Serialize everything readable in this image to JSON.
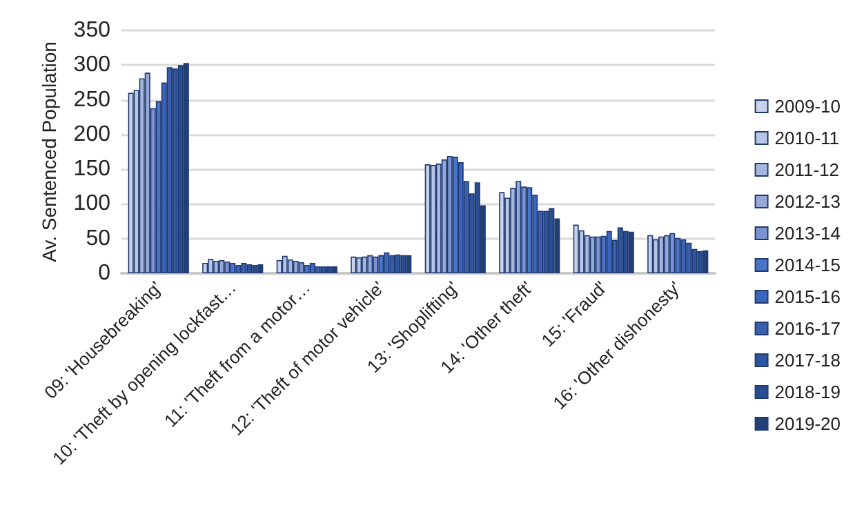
{
  "chart_data": {
    "type": "bar",
    "ylabel": "Av. Sentenced Population",
    "categories": [
      "09: 'Housebreaking'",
      "10: 'Theft by opening lockfast…",
      "11: 'Theft from a motor…",
      "12: 'Theft of motor vehicle'",
      "13: 'Shoplifting'",
      "14: 'Other theft'",
      "15: 'Fraud'",
      "16: 'Other dishonesty'"
    ],
    "series": [
      {
        "name": "2009-10",
        "color": "#c8d2ea",
        "values": [
          260,
          15,
          19,
          24,
          157,
          117,
          70,
          55
        ]
      },
      {
        "name": "2010-11",
        "color": "#b7c6e6",
        "values": [
          264,
          21,
          25,
          23,
          156,
          109,
          62,
          49
        ]
      },
      {
        "name": "2011-12",
        "color": "#a7b8df",
        "values": [
          281,
          18,
          20,
          24,
          158,
          123,
          55,
          53
        ]
      },
      {
        "name": "2012-13",
        "color": "#95a8d8",
        "values": [
          289,
          19,
          18,
          26,
          164,
          133,
          53,
          55
        ]
      },
      {
        "name": "2013-14",
        "color": "#7b93d0",
        "values": [
          238,
          17,
          16,
          24,
          169,
          125,
          53,
          58
        ]
      },
      {
        "name": "2014-15",
        "color": "#4a74c8",
        "values": [
          248,
          15,
          12,
          26,
          168,
          124,
          54,
          51
        ]
      },
      {
        "name": "2015-16",
        "color": "#3b66bf",
        "values": [
          275,
          12,
          15,
          30,
          160,
          113,
          61,
          49
        ]
      },
      {
        "name": "2016-17",
        "color": "#3a5fae",
        "values": [
          297,
          15,
          10,
          26,
          133,
          90,
          48,
          44
        ]
      },
      {
        "name": "2017-18",
        "color": "#2e559f",
        "values": [
          295,
          13,
          10,
          27,
          115,
          90,
          66,
          35
        ]
      },
      {
        "name": "2018-19",
        "color": "#2a4c91",
        "values": [
          300,
          12,
          10,
          26,
          131,
          94,
          61,
          32
        ]
      },
      {
        "name": "2019-20",
        "color": "#233f78",
        "values": [
          303,
          13,
          10,
          26,
          98,
          79,
          60,
          33
        ]
      }
    ],
    "ylim": [
      0,
      350
    ],
    "yticks": [
      0,
      50,
      100,
      150,
      200,
      250,
      300,
      350
    ],
    "grid": "y",
    "legend": "right"
  }
}
